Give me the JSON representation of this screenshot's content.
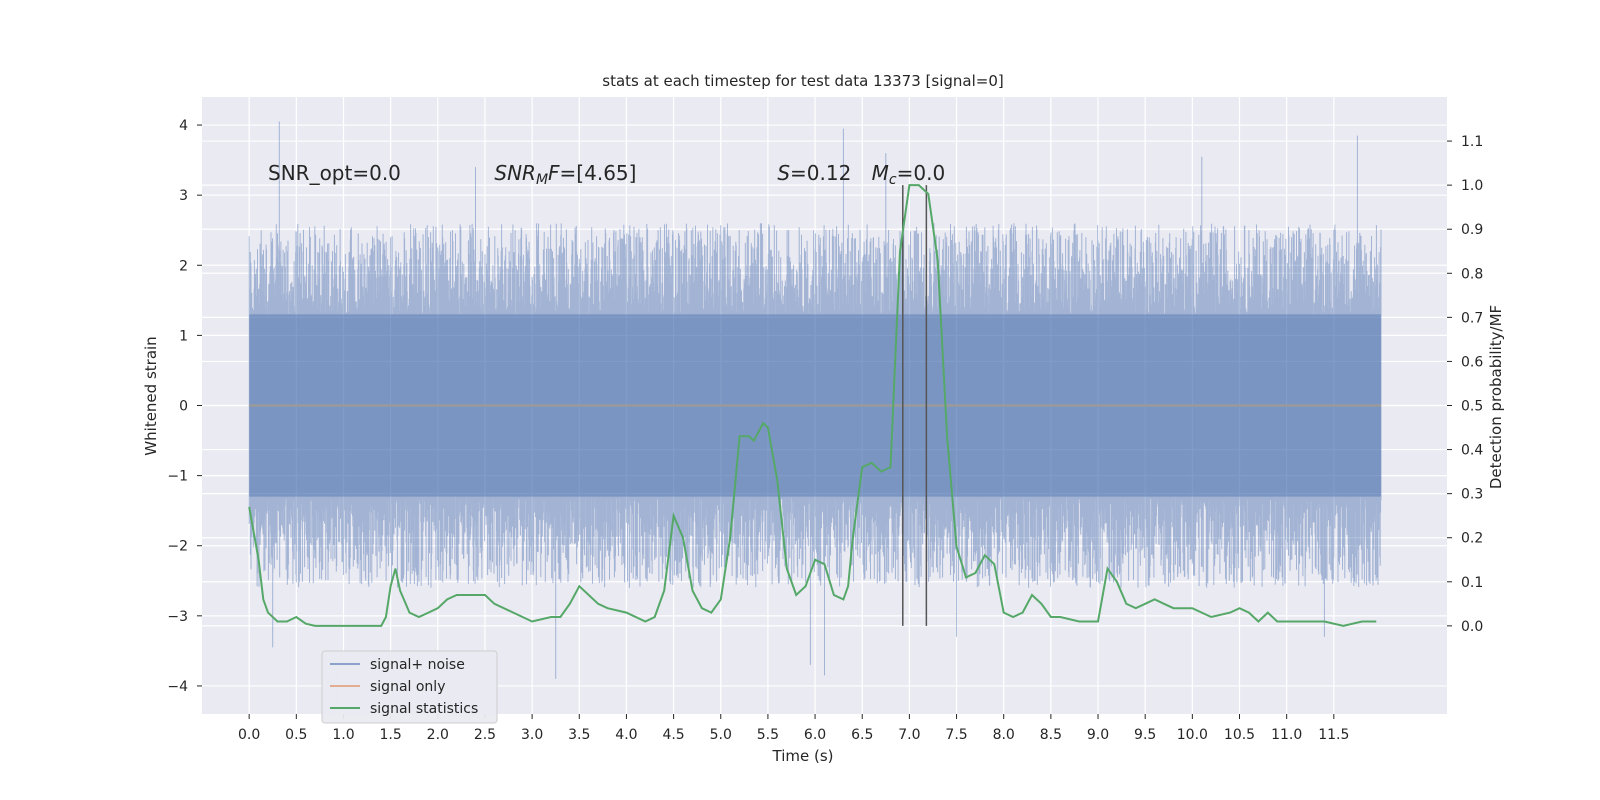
{
  "chart_data": {
    "type": "line",
    "title": "stats at each timestep for test data 13373 [signal=0]",
    "xlabel": "Time (s)",
    "ylabel": "Whitened strain",
    "y2label": "Detection probability/MF",
    "xlim": [
      -0.5,
      12.7
    ],
    "ylim": [
      -4.4,
      4.4
    ],
    "y2lim": [
      -0.2,
      1.2
    ],
    "xticks": [
      0.0,
      0.5,
      1.0,
      1.5,
      2.0,
      2.5,
      3.0,
      3.5,
      4.0,
      4.5,
      5.0,
      5.5,
      6.0,
      6.5,
      7.0,
      7.5,
      8.0,
      8.5,
      9.0,
      9.5,
      10.0,
      10.5,
      11.0,
      11.5
    ],
    "xtick_labels": [
      "0.0",
      "0.5",
      "1.0",
      "1.5",
      "2.0",
      "2.5",
      "3.0",
      "3.5",
      "4.0",
      "4.5",
      "5.0",
      "5.5",
      "6.0",
      "6.5",
      "7.0",
      "7.5",
      "8.0",
      "8.5",
      "9.0",
      "9.5",
      "10.0",
      "10.5",
      "11.0",
      "11.5"
    ],
    "yticks": [
      -4,
      -3,
      -2,
      -1,
      0,
      1,
      2,
      3,
      4
    ],
    "ytick_labels": [
      "−4",
      "−3",
      "−2",
      "−1",
      "0",
      "1",
      "2",
      "3",
      "4"
    ],
    "y2ticks": [
      0.0,
      0.1,
      0.2,
      0.3,
      0.4,
      0.5,
      0.6,
      0.7,
      0.8,
      0.9,
      1.0,
      1.1
    ],
    "y2tick_labels": [
      "0.0",
      "0.1",
      "0.2",
      "0.3",
      "0.4",
      "0.5",
      "0.6",
      "0.7",
      "0.8",
      "0.9",
      "1.0",
      "1.1"
    ],
    "grid": true,
    "legend_position": "lower-left",
    "annotations": [
      {
        "text": "SNR_opt=0.0",
        "x": 0.2,
        "y": 3.3
      },
      {
        "text": "SNR_MF=[4.65]",
        "x": 2.6,
        "y": 3.3
      },
      {
        "text": "S=0.12",
        "x": 5.6,
        "y": 3.3
      },
      {
        "text": "M_c=0.0",
        "x": 6.6,
        "y": 3.3
      }
    ],
    "vertical_lines": [
      {
        "x": 6.93,
        "y2_from": 0.0,
        "y2_to": 1.0
      },
      {
        "x": 7.18,
        "y2_from": 0.0,
        "y2_to": 1.0
      }
    ],
    "series": [
      {
        "name": "signal+ noise",
        "axis": "left",
        "color": "#4c72b0",
        "style": "dense-noise",
        "x_range": [
          0.0,
          12.0
        ],
        "core_band": [
          -1.3,
          1.3
        ],
        "typical_peaks": [
          -2.6,
          2.6
        ],
        "extreme_peaks": [
          [
            0.32,
            4.05
          ],
          [
            6.3,
            3.95
          ],
          [
            11.75,
            3.85
          ],
          [
            0.25,
            -3.45
          ],
          [
            3.25,
            -3.9
          ],
          [
            5.95,
            -3.7
          ],
          [
            6.1,
            -3.85
          ],
          [
            7.5,
            -3.3
          ],
          [
            11.4,
            -3.3
          ],
          [
            2.4,
            3.4
          ],
          [
            6.75,
            3.6
          ],
          [
            10.1,
            3.55
          ]
        ]
      },
      {
        "name": "signal only",
        "axis": "left",
        "color": "#dd8452",
        "x": [
          0.0,
          12.0
        ],
        "y": [
          0.0,
          0.0
        ]
      },
      {
        "name": "signal statistics",
        "axis": "right",
        "color": "#55a868",
        "x": [
          0.0,
          0.1,
          0.15,
          0.2,
          0.3,
          0.4,
          0.5,
          0.6,
          0.7,
          0.8,
          1.0,
          1.2,
          1.4,
          1.45,
          1.5,
          1.55,
          1.6,
          1.7,
          1.8,
          1.9,
          2.0,
          2.1,
          2.2,
          2.3,
          2.4,
          2.5,
          2.6,
          2.8,
          3.0,
          3.2,
          3.3,
          3.4,
          3.5,
          3.6,
          3.7,
          3.8,
          4.0,
          4.2,
          4.3,
          4.4,
          4.5,
          4.6,
          4.7,
          4.8,
          4.9,
          5.0,
          5.1,
          5.2,
          5.3,
          5.35,
          5.4,
          5.45,
          5.5,
          5.6,
          5.7,
          5.8,
          5.9,
          6.0,
          6.1,
          6.2,
          6.3,
          6.35,
          6.4,
          6.5,
          6.6,
          6.7,
          6.8,
          6.9,
          7.0,
          7.1,
          7.2,
          7.3,
          7.4,
          7.5,
          7.6,
          7.7,
          7.8,
          7.9,
          8.0,
          8.1,
          8.2,
          8.3,
          8.4,
          8.5,
          8.6,
          8.8,
          9.0,
          9.1,
          9.2,
          9.3,
          9.4,
          9.5,
          9.6,
          9.7,
          9.8,
          9.9,
          10.0,
          10.2,
          10.4,
          10.5,
          10.6,
          10.7,
          10.8,
          10.9,
          11.0,
          11.2,
          11.4,
          11.6,
          11.8,
          11.95
        ],
        "y": [
          0.27,
          0.15,
          0.06,
          0.03,
          0.01,
          0.01,
          0.02,
          0.005,
          0.0,
          0.0,
          0.0,
          0.0,
          0.0,
          0.02,
          0.09,
          0.13,
          0.08,
          0.03,
          0.02,
          0.03,
          0.04,
          0.06,
          0.07,
          0.07,
          0.07,
          0.07,
          0.05,
          0.03,
          0.01,
          0.02,
          0.02,
          0.05,
          0.09,
          0.07,
          0.05,
          0.04,
          0.03,
          0.01,
          0.02,
          0.08,
          0.25,
          0.2,
          0.08,
          0.04,
          0.03,
          0.06,
          0.2,
          0.43,
          0.43,
          0.42,
          0.44,
          0.46,
          0.45,
          0.33,
          0.13,
          0.07,
          0.09,
          0.15,
          0.14,
          0.07,
          0.06,
          0.09,
          0.2,
          0.36,
          0.37,
          0.35,
          0.36,
          0.85,
          1.0,
          1.0,
          0.98,
          0.83,
          0.43,
          0.18,
          0.11,
          0.12,
          0.16,
          0.14,
          0.03,
          0.02,
          0.03,
          0.07,
          0.05,
          0.02,
          0.02,
          0.01,
          0.01,
          0.13,
          0.1,
          0.05,
          0.04,
          0.05,
          0.06,
          0.05,
          0.04,
          0.04,
          0.04,
          0.02,
          0.03,
          0.04,
          0.03,
          0.01,
          0.03,
          0.01,
          0.01,
          0.01,
          0.01,
          0.0,
          0.01,
          0.01
        ]
      }
    ]
  }
}
